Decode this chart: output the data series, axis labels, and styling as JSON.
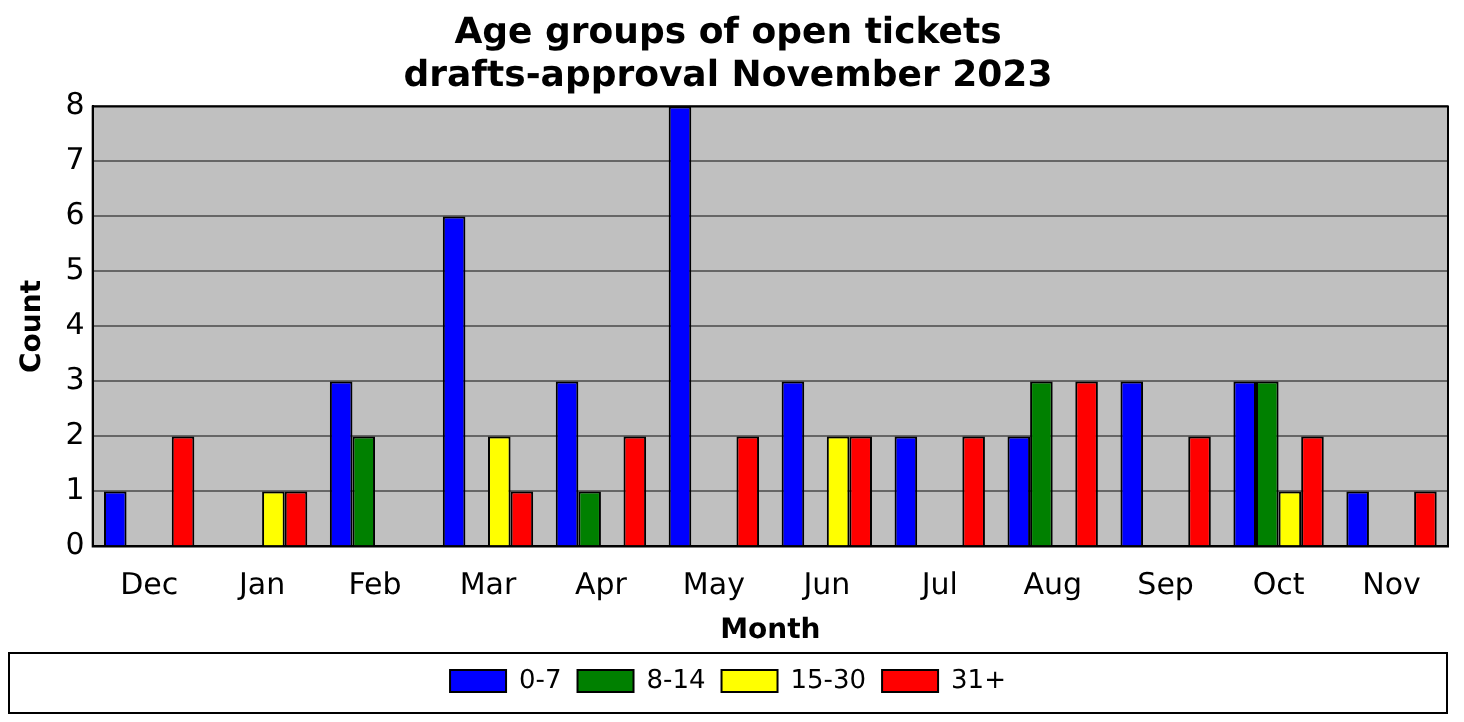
{
  "chart_data": {
    "type": "bar",
    "title": "Age groups of open tickets\ndrafts-approval November 2023",
    "xlabel": "Month",
    "ylabel": "Count",
    "categories": [
      "Dec",
      "Jan",
      "Feb",
      "Mar",
      "Apr",
      "May",
      "Jun",
      "Jul",
      "Aug",
      "Sep",
      "Oct",
      "Nov"
    ],
    "series": [
      {
        "name": "0-7",
        "color": "#0000ff",
        "values": [
          1,
          0,
          3,
          6,
          3,
          8,
          3,
          2,
          2,
          3,
          3,
          1
        ]
      },
      {
        "name": "8-14",
        "color": "#008000",
        "values": [
          0,
          0,
          2,
          0,
          1,
          0,
          0,
          0,
          3,
          0,
          3,
          0
        ]
      },
      {
        "name": "15-30",
        "color": "#ffff00",
        "values": [
          0,
          1,
          0,
          2,
          0,
          0,
          2,
          0,
          0,
          0,
          1,
          0
        ]
      },
      {
        "name": "31+",
        "color": "#ff0000",
        "values": [
          2,
          1,
          0,
          1,
          2,
          2,
          2,
          2,
          3,
          2,
          2,
          1
        ]
      }
    ],
    "ylim": [
      0,
      8
    ],
    "yticks": [
      0,
      1,
      2,
      3,
      4,
      5,
      6,
      7,
      8
    ],
    "grid": "y",
    "legend": "bottom"
  }
}
